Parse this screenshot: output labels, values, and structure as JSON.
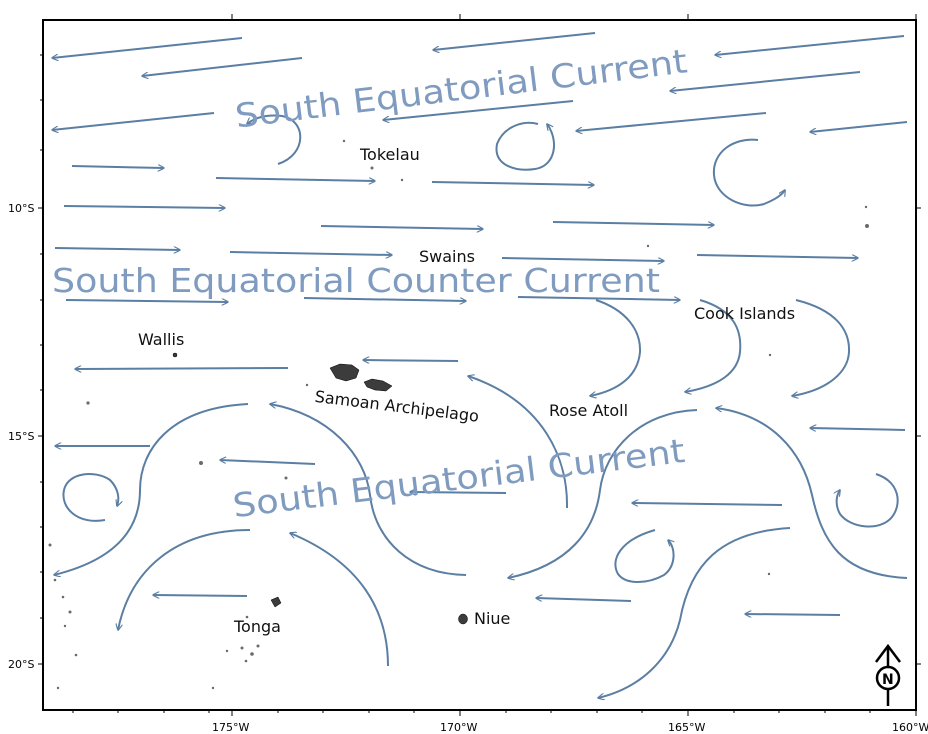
{
  "map": {
    "currents": {
      "north": "South Equatorial Current",
      "middle": "South Equatorial Counter Current",
      "south": "South Equatorial Current"
    },
    "places": {
      "tokelau": "Tokelau",
      "swains": "Swains",
      "wallis": "Wallis",
      "cook_islands": "Cook Islands",
      "samoan_archipelago": "Samoan Archipelago",
      "rose_atoll": "Rose Atoll",
      "tonga": "Tonga",
      "niue": "Niue"
    },
    "latitude_labels": [
      "10°S",
      "15°S",
      "20°S"
    ],
    "longitude_labels": [
      "175°W",
      "170°W",
      "165°W",
      "160°W"
    ],
    "north_arrow_label": "N",
    "colors": {
      "arrow": "#5b7ea3",
      "current_text": "#7f9bbf",
      "land": "#3c3c3c",
      "frame": "#000000"
    }
  }
}
